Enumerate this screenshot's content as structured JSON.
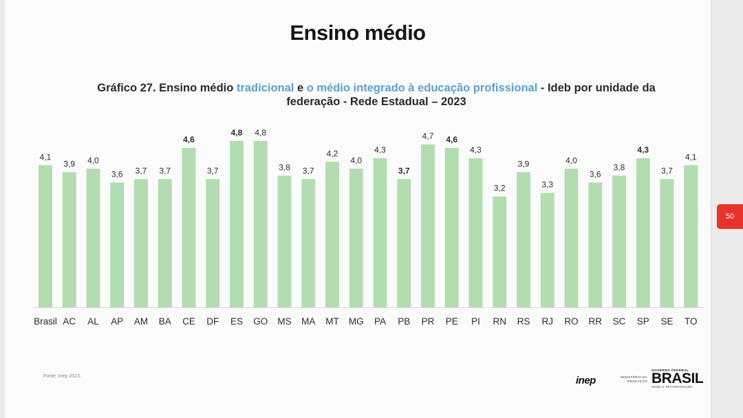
{
  "slide": {
    "heading": "Ensino médio",
    "page_number": "50",
    "source": "Fonte: Inep 2023.",
    "logos": {
      "inep": "inep",
      "mec": "MINISTÉRIO DA EDUCAÇÃO",
      "gov_top": "GOVERNO FEDERAL",
      "gov_main": "BRASIL",
      "gov_bottom": "UNIÃO E RECONSTRUÇÃO"
    }
  },
  "chart_title": {
    "part1": "Gráfico 27. Ensino médio ",
    "part2": "tradicional",
    "part3": " e ",
    "part4": "o médio integrado à educação profissional",
    "part5": " - Ideb por unidade da federação - Rede Estadual – 2023"
  },
  "colors": {
    "bar": "#b3ddb0",
    "highlight_blue": "#5b9fd4",
    "page_tab": "#e8322c"
  },
  "chart_data": {
    "type": "bar",
    "title": "Gráfico 27. Ensino médio tradicional e o médio integrado à educação profissional - Ideb por unidade da federação - Rede Estadual – 2023",
    "categories": [
      "Brasil",
      "AC",
      "AL",
      "AP",
      "AM",
      "BA",
      "CE",
      "DF",
      "ES",
      "GO",
      "MS",
      "MA",
      "MT",
      "MG",
      "PA",
      "PB",
      "PR",
      "PE",
      "PI",
      "RN",
      "RS",
      "RJ",
      "RO",
      "RR",
      "SC",
      "SP",
      "SE",
      "TO"
    ],
    "values": [
      4.1,
      3.9,
      4.0,
      3.6,
      3.7,
      3.7,
      4.6,
      3.7,
      4.8,
      4.8,
      3.8,
      3.7,
      4.2,
      4.0,
      4.3,
      3.7,
      4.7,
      4.6,
      4.3,
      3.2,
      3.9,
      3.3,
      4.0,
      3.6,
      3.8,
      4.3,
      3.7,
      4.1
    ],
    "labels": [
      "4,1",
      "3,9",
      "4,0",
      "3,6",
      "3,7",
      "3,7",
      "4,6",
      "3,7",
      "4,8",
      "4,8",
      "3,8",
      "3,7",
      "4,2",
      "4,0",
      "4,3",
      "3,7",
      "4,7",
      "4,6",
      "4,3",
      "3,2",
      "3,9",
      "3,3",
      "4,0",
      "3,6",
      "3,8",
      "4,3",
      "3,7",
      "4,1"
    ],
    "bold_labels": [
      "CE",
      "ES",
      "PB",
      "PE",
      "SP"
    ],
    "ylim": [
      0,
      4.8
    ],
    "xlabel": "",
    "ylabel": "",
    "grid": false
  }
}
